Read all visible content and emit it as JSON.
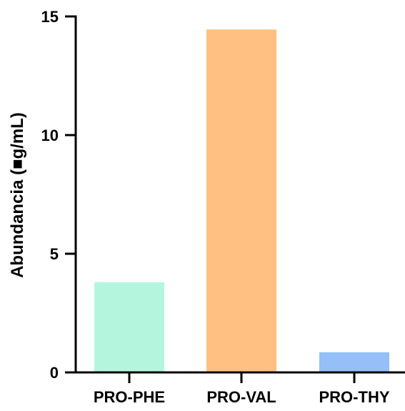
{
  "chart_data": {
    "type": "bar",
    "categories": [
      "PRO-PHE",
      "PRO-VAL",
      "PRO-THY"
    ],
    "values": [
      3.8,
      14.45,
      0.85
    ],
    "colors": [
      "#b3f5dd",
      "#ffc082",
      "#94bff8"
    ],
    "xlabel": "",
    "ylabel": "Abundancia (■g/mL)",
    "ylim": [
      0,
      15
    ],
    "yticks": [
      0,
      5,
      10,
      15
    ],
    "ytick_labels": [
      "0",
      "5",
      "10",
      "15"
    ],
    "grid": false,
    "legend": "none"
  }
}
